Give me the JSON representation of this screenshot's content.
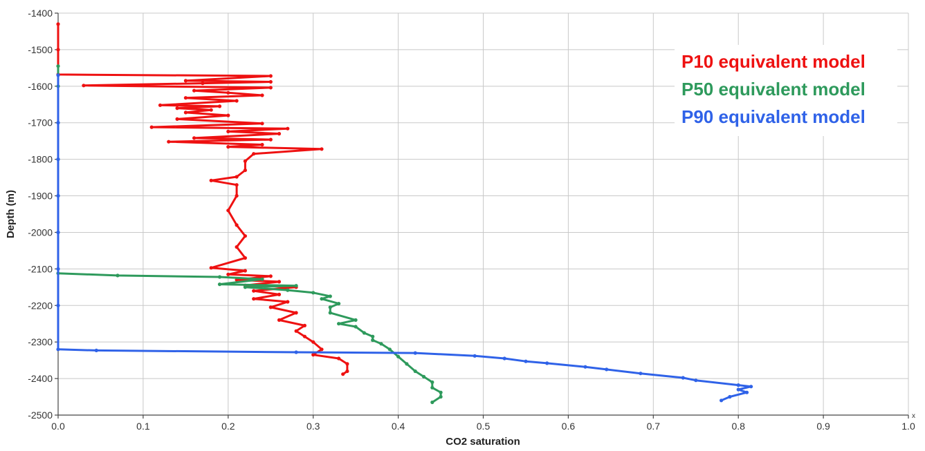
{
  "chart_data": {
    "type": "line",
    "xlabel": "CO2 saturation",
    "ylabel": "Depth (m)",
    "xlim": [
      0.0,
      1.0
    ],
    "ylim": [
      -2500,
      -1400
    ],
    "x_ticks": [
      "0.0",
      "0.1",
      "0.2",
      "0.3",
      "0.4",
      "0.5",
      "0.6",
      "0.7",
      "0.8",
      "0.9",
      "1.0"
    ],
    "y_ticks": [
      "-1400",
      "-1500",
      "-1600",
      "-1700",
      "-1800",
      "-1900",
      "-2000",
      "-2100",
      "-2200",
      "-2300",
      "-2400",
      "-2500"
    ],
    "x_axis_marker": "x",
    "grid": true,
    "legend_position": "top-right",
    "series": [
      {
        "name": "P10 equivalent model",
        "color": "#ee1111",
        "points": [
          [
            0.0,
            -1430
          ],
          [
            0.0,
            -1500
          ],
          [
            0.0,
            -1568
          ],
          [
            0.25,
            -1572
          ],
          [
            0.15,
            -1585
          ],
          [
            0.25,
            -1588
          ],
          [
            0.17,
            -1592
          ],
          [
            0.03,
            -1598
          ],
          [
            0.25,
            -1604
          ],
          [
            0.16,
            -1612
          ],
          [
            0.2,
            -1618
          ],
          [
            0.24,
            -1625
          ],
          [
            0.15,
            -1632
          ],
          [
            0.21,
            -1640
          ],
          [
            0.12,
            -1652
          ],
          [
            0.19,
            -1655
          ],
          [
            0.14,
            -1660
          ],
          [
            0.18,
            -1665
          ],
          [
            0.15,
            -1672
          ],
          [
            0.2,
            -1680
          ],
          [
            0.14,
            -1690
          ],
          [
            0.24,
            -1702
          ],
          [
            0.11,
            -1712
          ],
          [
            0.27,
            -1716
          ],
          [
            0.2,
            -1724
          ],
          [
            0.26,
            -1730
          ],
          [
            0.16,
            -1742
          ],
          [
            0.25,
            -1746
          ],
          [
            0.13,
            -1752
          ],
          [
            0.24,
            -1760
          ],
          [
            0.2,
            -1766
          ],
          [
            0.31,
            -1772
          ],
          [
            0.23,
            -1785
          ],
          [
            0.22,
            -1805
          ],
          [
            0.22,
            -1830
          ],
          [
            0.21,
            -1848
          ],
          [
            0.18,
            -1858
          ],
          [
            0.21,
            -1870
          ],
          [
            0.21,
            -1900
          ],
          [
            0.2,
            -1940
          ],
          [
            0.21,
            -1980
          ],
          [
            0.22,
            -2010
          ],
          [
            0.21,
            -2040
          ],
          [
            0.22,
            -2070
          ],
          [
            0.18,
            -2097
          ],
          [
            0.22,
            -2105
          ],
          [
            0.2,
            -2115
          ],
          [
            0.25,
            -2120
          ],
          [
            0.21,
            -2130
          ],
          [
            0.26,
            -2135
          ],
          [
            0.22,
            -2145
          ],
          [
            0.28,
            -2150
          ],
          [
            0.23,
            -2160
          ],
          [
            0.26,
            -2170
          ],
          [
            0.23,
            -2182
          ],
          [
            0.27,
            -2190
          ],
          [
            0.25,
            -2205
          ],
          [
            0.28,
            -2220
          ],
          [
            0.26,
            -2240
          ],
          [
            0.29,
            -2255
          ],
          [
            0.28,
            -2270
          ],
          [
            0.29,
            -2285
          ],
          [
            0.3,
            -2300
          ],
          [
            0.31,
            -2320
          ],
          [
            0.3,
            -2335
          ],
          [
            0.33,
            -2345
          ],
          [
            0.34,
            -2360
          ],
          [
            0.34,
            -2380
          ],
          [
            0.335,
            -2388
          ]
        ]
      },
      {
        "name": "P50 equivalent model",
        "color": "#2e9a5c",
        "points": [
          [
            0.0,
            -1545
          ],
          [
            0.0,
            -1600
          ],
          [
            0.0,
            -1700
          ],
          [
            0.0,
            -1800
          ],
          [
            0.0,
            -1900
          ],
          [
            0.0,
            -2000
          ],
          [
            0.0,
            -2112
          ],
          [
            0.07,
            -2118
          ],
          [
            0.19,
            -2122
          ],
          [
            0.24,
            -2128
          ],
          [
            0.19,
            -2142
          ],
          [
            0.28,
            -2146
          ],
          [
            0.22,
            -2150
          ],
          [
            0.27,
            -2158
          ],
          [
            0.3,
            -2165
          ],
          [
            0.32,
            -2175
          ],
          [
            0.31,
            -2182
          ],
          [
            0.33,
            -2195
          ],
          [
            0.32,
            -2205
          ],
          [
            0.32,
            -2220
          ],
          [
            0.35,
            -2240
          ],
          [
            0.33,
            -2250
          ],
          [
            0.35,
            -2258
          ],
          [
            0.36,
            -2275
          ],
          [
            0.37,
            -2285
          ],
          [
            0.37,
            -2295
          ],
          [
            0.38,
            -2305
          ],
          [
            0.39,
            -2320
          ],
          [
            0.4,
            -2340
          ],
          [
            0.41,
            -2360
          ],
          [
            0.42,
            -2380
          ],
          [
            0.43,
            -2395
          ],
          [
            0.44,
            -2410
          ],
          [
            0.44,
            -2425
          ],
          [
            0.45,
            -2438
          ],
          [
            0.45,
            -2450
          ],
          [
            0.44,
            -2465
          ]
        ]
      },
      {
        "name": "P90 equivalent model",
        "color": "#2f62e8",
        "points": [
          [
            0.0,
            -1570
          ],
          [
            0.0,
            -1700
          ],
          [
            0.0,
            -1800
          ],
          [
            0.0,
            -1900
          ],
          [
            0.0,
            -2000
          ],
          [
            0.0,
            -2100
          ],
          [
            0.0,
            -2200
          ],
          [
            0.0,
            -2320
          ],
          [
            0.045,
            -2323
          ],
          [
            0.28,
            -2328
          ],
          [
            0.42,
            -2330
          ],
          [
            0.49,
            -2338
          ],
          [
            0.525,
            -2345
          ],
          [
            0.55,
            -2353
          ],
          [
            0.575,
            -2358
          ],
          [
            0.62,
            -2368
          ],
          [
            0.645,
            -2375
          ],
          [
            0.685,
            -2386
          ],
          [
            0.735,
            -2398
          ],
          [
            0.75,
            -2405
          ],
          [
            0.8,
            -2418
          ],
          [
            0.815,
            -2422
          ],
          [
            0.8,
            -2430
          ],
          [
            0.81,
            -2438
          ],
          [
            0.79,
            -2450
          ],
          [
            0.78,
            -2460
          ]
        ]
      }
    ]
  }
}
